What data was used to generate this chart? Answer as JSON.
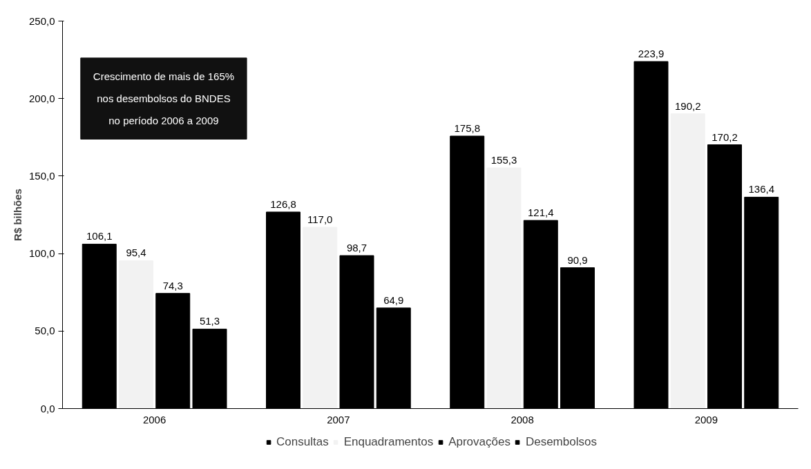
{
  "chart_data": {
    "type": "bar",
    "ylabel": "R$ bilhões",
    "categories": [
      "2006",
      "2007",
      "2008",
      "2009"
    ],
    "series": [
      {
        "name": "Consultas",
        "color": "#000000",
        "values": [
          106.1,
          126.8,
          175.8,
          223.9
        ],
        "value_labels": [
          "106,1",
          "126,8",
          "175,8",
          "223,9"
        ]
      },
      {
        "name": "Enquadramentos",
        "color": "#f2f2f2",
        "values": [
          95.4,
          117.0,
          155.3,
          190.2
        ],
        "value_labels": [
          "95,4",
          "117,0",
          "155,3",
          "190,2"
        ]
      },
      {
        "name": "Aprovações",
        "color": "#000000",
        "values": [
          74.3,
          98.7,
          121.4,
          170.2
        ],
        "value_labels": [
          "74,3",
          "98,7",
          "121,4",
          "170,2"
        ]
      },
      {
        "name": "Desembolsos",
        "color": "#000000",
        "values": [
          51.3,
          64.9,
          90.9,
          136.4
        ],
        "value_labels": [
          "51,3",
          "64,9",
          "90,9",
          "136,4"
        ]
      }
    ],
    "ylim": [
      0,
      250
    ],
    "yticks": [
      {
        "value": 0,
        "label": "0,0"
      },
      {
        "value": 50,
        "label": "50,0"
      },
      {
        "value": 100,
        "label": "100,0"
      },
      {
        "value": 150,
        "label": "150,0"
      },
      {
        "value": 200,
        "label": "200,0"
      },
      {
        "value": 250,
        "label": "250,0"
      }
    ],
    "annotations": [
      "Crescimento de mais de 165%\nnos desembolsos do BNDES\nno período 2006 a 2009"
    ],
    "legend": "bottom",
    "grid": false
  }
}
